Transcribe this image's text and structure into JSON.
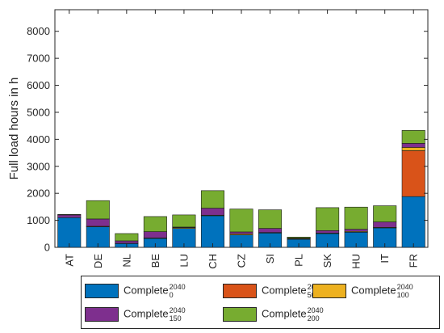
{
  "chart_data": {
    "type": "bar",
    "stacked": true,
    "categories": [
      "AT",
      "DE",
      "NL",
      "BE",
      "LU",
      "CH",
      "CZ",
      "SI",
      "PL",
      "SK",
      "HU",
      "IT",
      "FR"
    ],
    "ylabel": "Full load hours in h",
    "xlabel": "",
    "ylim": [
      0,
      8800
    ],
    "yticks": [
      0,
      1000,
      2000,
      3000,
      4000,
      5000,
      6000,
      7000,
      8000
    ],
    "series": [
      {
        "name": "Complete",
        "sup": "2040",
        "sub": "0",
        "color": "#0072BD",
        "values": [
          1100,
          760,
          140,
          330,
          700,
          1170,
          460,
          530,
          300,
          510,
          560,
          720,
          1880
        ]
      },
      {
        "name": "Complete",
        "sup": "2040",
        "sub": "50",
        "color": "#D95319",
        "values": [
          0,
          0,
          0,
          0,
          0,
          0,
          0,
          0,
          0,
          0,
          0,
          0,
          1700
        ]
      },
      {
        "name": "Complete",
        "sup": "2040",
        "sub": "100",
        "color": "#EDB120",
        "values": [
          0,
          20,
          10,
          20,
          30,
          20,
          40,
          20,
          20,
          20,
          30,
          20,
          120
        ]
      },
      {
        "name": "Complete",
        "sup": "2040",
        "sub": "150",
        "color": "#7E2F8E",
        "values": [
          100,
          270,
          90,
          230,
          20,
          260,
          70,
          150,
          20,
          90,
          80,
          200,
          150
        ]
      },
      {
        "name": "Complete",
        "sup": "2040",
        "sub": "200",
        "color": "#77AC30",
        "values": [
          20,
          680,
          270,
          560,
          450,
          650,
          850,
          690,
          40,
          850,
          820,
          600,
          480
        ]
      }
    ],
    "grid": false,
    "legend_position": "bottom"
  }
}
